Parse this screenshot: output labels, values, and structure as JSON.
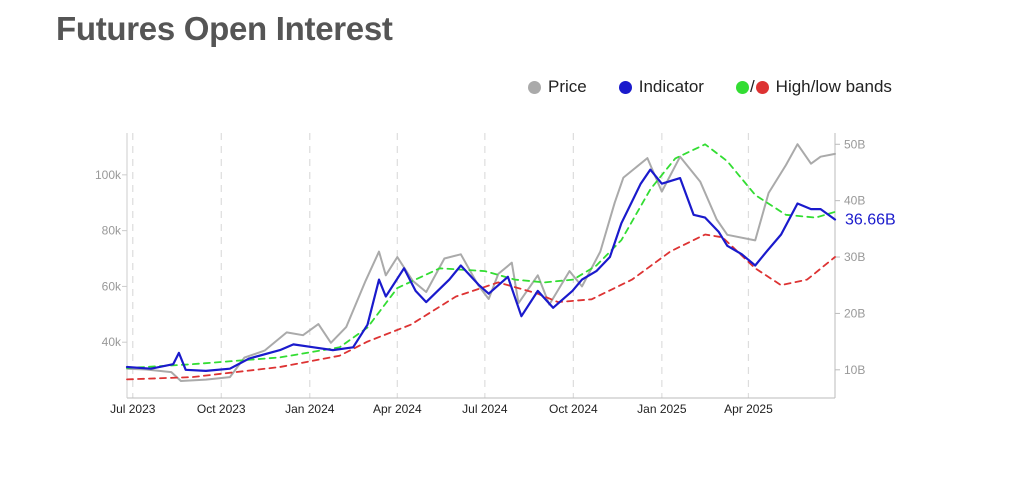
{
  "title": "Futures Open Interest",
  "legend": {
    "price_label": "Price",
    "indicator_label": "Indicator",
    "bands_separator": "/",
    "bands_label": "High/low bands"
  },
  "colors": {
    "price": "#aaaaaa",
    "indicator": "#1a1acc",
    "high_band": "#33dd33",
    "low_band": "#dd3333",
    "grid": "#dddddd"
  },
  "chart_data": {
    "type": "line",
    "x_type": "date",
    "xlim": [
      "2023-06-25",
      "2025-06-30"
    ],
    "x_ticks": [
      {
        "date": "2023-07-01",
        "label": "Jul 2023"
      },
      {
        "date": "2023-10-01",
        "label": "Oct 2023"
      },
      {
        "date": "2024-01-01",
        "label": "Jan 2024"
      },
      {
        "date": "2024-04-01",
        "label": "Apr 2024"
      },
      {
        "date": "2024-07-01",
        "label": "Jul 2024"
      },
      {
        "date": "2024-10-01",
        "label": "Oct 2024"
      },
      {
        "date": "2025-01-01",
        "label": "Jan 2025"
      },
      {
        "date": "2025-04-01",
        "label": "Apr 2025"
      }
    ],
    "y_left": {
      "ticks": [
        {
          "value": 40000,
          "label": "40k"
        },
        {
          "value": 60000,
          "label": "60k"
        },
        {
          "value": 80000,
          "label": "80k"
        },
        {
          "value": 100000,
          "label": "100k"
        }
      ],
      "ylim": [
        20000,
        115000
      ]
    },
    "y_right": {
      "ticks": [
        {
          "value": 10,
          "label": "10B"
        },
        {
          "value": 20,
          "label": "20B"
        },
        {
          "value": 30,
          "label": "30B"
        },
        {
          "value": 40,
          "label": "40B"
        },
        {
          "value": 50,
          "label": "50B"
        }
      ],
      "ylim": [
        5,
        52
      ]
    },
    "grid": "vertical dashed lines at month ticks",
    "last_value_label": "36.66B",
    "series": [
      {
        "name": "Price",
        "axis": "left",
        "style": "solid",
        "points": [
          [
            "2023-06-25",
            30500
          ],
          [
            "2023-07-15",
            30200
          ],
          [
            "2023-08-10",
            29300
          ],
          [
            "2023-08-20",
            26100
          ],
          [
            "2023-09-15",
            26600
          ],
          [
            "2023-10-10",
            27500
          ],
          [
            "2023-10-25",
            34500
          ],
          [
            "2023-11-15",
            37000
          ],
          [
            "2023-12-08",
            43500
          ],
          [
            "2023-12-25",
            42500
          ],
          [
            "2024-01-10",
            46500
          ],
          [
            "2024-01-23",
            39800
          ],
          [
            "2024-02-08",
            45500
          ],
          [
            "2024-02-28",
            62000
          ],
          [
            "2024-03-13",
            72500
          ],
          [
            "2024-03-20",
            64000
          ],
          [
            "2024-04-01",
            70500
          ],
          [
            "2024-04-17",
            62000
          ],
          [
            "2024-05-01",
            58000
          ],
          [
            "2024-05-20",
            70000
          ],
          [
            "2024-06-06",
            71500
          ],
          [
            "2024-06-24",
            60500
          ],
          [
            "2024-07-05",
            55500
          ],
          [
            "2024-07-15",
            64500
          ],
          [
            "2024-07-29",
            68500
          ],
          [
            "2024-08-05",
            54000
          ],
          [
            "2024-08-25",
            64000
          ],
          [
            "2024-09-06",
            53500
          ],
          [
            "2024-09-27",
            65500
          ],
          [
            "2024-10-10",
            60000
          ],
          [
            "2024-10-29",
            72500
          ],
          [
            "2024-11-13",
            90000
          ],
          [
            "2024-11-22",
            99000
          ],
          [
            "2024-12-17",
            106000
          ],
          [
            "2025-01-01",
            94000
          ],
          [
            "2025-01-20",
            106500
          ],
          [
            "2025-02-10",
            97500
          ],
          [
            "2025-02-27",
            84000
          ],
          [
            "2025-03-10",
            78500
          ],
          [
            "2025-04-08",
            76500
          ],
          [
            "2025-04-22",
            93500
          ],
          [
            "2025-05-10",
            103500
          ],
          [
            "2025-05-22",
            111000
          ],
          [
            "2025-06-05",
            104000
          ],
          [
            "2025-06-15",
            106500
          ],
          [
            "2025-06-30",
            107500
          ]
        ]
      },
      {
        "name": "Indicator",
        "axis": "right",
        "style": "solid",
        "points": [
          [
            "2023-06-25",
            10.5
          ],
          [
            "2023-07-20",
            10.2
          ],
          [
            "2023-08-12",
            11.0
          ],
          [
            "2023-08-18",
            13.0
          ],
          [
            "2023-08-25",
            10.0
          ],
          [
            "2023-09-15",
            9.8
          ],
          [
            "2023-10-10",
            10.2
          ],
          [
            "2023-10-30",
            12.0
          ],
          [
            "2023-12-01",
            13.5
          ],
          [
            "2023-12-15",
            14.5
          ],
          [
            "2024-01-05",
            14.0
          ],
          [
            "2024-01-25",
            13.5
          ],
          [
            "2024-02-15",
            14.0
          ],
          [
            "2024-03-01",
            18.0
          ],
          [
            "2024-03-13",
            26.0
          ],
          [
            "2024-03-20",
            23.0
          ],
          [
            "2024-04-08",
            28.0
          ],
          [
            "2024-04-20",
            24.0
          ],
          [
            "2024-05-01",
            22.0
          ],
          [
            "2024-05-25",
            26.0
          ],
          [
            "2024-06-06",
            28.5
          ],
          [
            "2024-06-25",
            25.0
          ],
          [
            "2024-07-05",
            23.5
          ],
          [
            "2024-07-25",
            26.5
          ],
          [
            "2024-08-08",
            19.5
          ],
          [
            "2024-08-25",
            24.0
          ],
          [
            "2024-09-10",
            21.0
          ],
          [
            "2024-09-30",
            24.0
          ],
          [
            "2024-10-10",
            26.0
          ],
          [
            "2024-10-25",
            27.5
          ],
          [
            "2024-11-08",
            30.0
          ],
          [
            "2024-11-20",
            36.0
          ],
          [
            "2024-12-10",
            43.0
          ],
          [
            "2024-12-20",
            45.5
          ],
          [
            "2025-01-01",
            43.0
          ],
          [
            "2025-01-20",
            44.0
          ],
          [
            "2025-02-03",
            37.5
          ],
          [
            "2025-02-15",
            37.0
          ],
          [
            "2025-03-01",
            34.5
          ],
          [
            "2025-03-10",
            32.0
          ],
          [
            "2025-03-25",
            30.5
          ],
          [
            "2025-04-08",
            28.5
          ],
          [
            "2025-04-20",
            31.0
          ],
          [
            "2025-05-05",
            34.0
          ],
          [
            "2025-05-22",
            39.5
          ],
          [
            "2025-06-05",
            38.5
          ],
          [
            "2025-06-15",
            38.5
          ],
          [
            "2025-06-30",
            36.66
          ]
        ]
      },
      {
        "name": "High band",
        "axis": "right",
        "style": "dashed",
        "points": [
          [
            "2023-06-25",
            10.3
          ],
          [
            "2023-09-01",
            11.0
          ],
          [
            "2023-12-01",
            12.2
          ],
          [
            "2024-02-01",
            14.0
          ],
          [
            "2024-03-01",
            17.5
          ],
          [
            "2024-04-01",
            24.5
          ],
          [
            "2024-05-15",
            28.0
          ],
          [
            "2024-07-01",
            27.5
          ],
          [
            "2024-08-01",
            26.0
          ],
          [
            "2024-09-01",
            25.5
          ],
          [
            "2024-10-01",
            26.0
          ],
          [
            "2024-10-25",
            28.5
          ],
          [
            "2024-11-20",
            33.0
          ],
          [
            "2024-12-20",
            42.0
          ],
          [
            "2025-01-15",
            47.5
          ],
          [
            "2025-02-15",
            50.0
          ],
          [
            "2025-03-10",
            47.0
          ],
          [
            "2025-04-08",
            41.0
          ],
          [
            "2025-05-10",
            37.5
          ],
          [
            "2025-06-10",
            37.0
          ],
          [
            "2025-06-30",
            38.0
          ]
        ]
      },
      {
        "name": "Low band",
        "axis": "right",
        "style": "dashed",
        "points": [
          [
            "2023-06-25",
            8.3
          ],
          [
            "2023-09-01",
            8.7
          ],
          [
            "2023-12-01",
            10.5
          ],
          [
            "2024-02-01",
            12.5
          ],
          [
            "2024-03-01",
            15.0
          ],
          [
            "2024-04-15",
            18.0
          ],
          [
            "2024-06-01",
            23.0
          ],
          [
            "2024-07-15",
            25.5
          ],
          [
            "2024-08-25",
            23.5
          ],
          [
            "2024-09-15",
            22.0
          ],
          [
            "2024-10-20",
            22.5
          ],
          [
            "2024-12-01",
            26.0
          ],
          [
            "2025-01-10",
            31.0
          ],
          [
            "2025-02-15",
            34.0
          ],
          [
            "2025-03-05",
            33.5
          ],
          [
            "2025-04-08",
            28.0
          ],
          [
            "2025-05-05",
            25.0
          ],
          [
            "2025-06-01",
            26.0
          ],
          [
            "2025-06-30",
            30.0
          ]
        ]
      }
    ]
  }
}
